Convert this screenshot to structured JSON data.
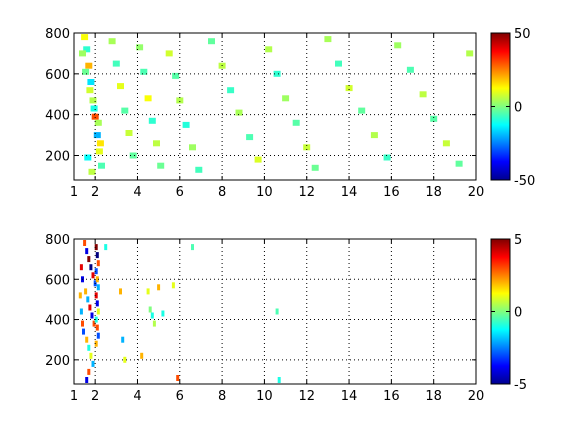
{
  "chart_data": [
    {
      "type": "heatmap",
      "title": "",
      "xlabel": "",
      "ylabel": "",
      "xlim": [
        1,
        20
      ],
      "ylim": [
        80,
        800
      ],
      "x_ticks": [
        "1",
        "2",
        "4",
        "6",
        "8",
        "10",
        "12",
        "14",
        "16",
        "18",
        "20"
      ],
      "y_ticks": [
        "200",
        "400",
        "600",
        "800"
      ],
      "grid": true,
      "colormap": "jet",
      "colorbar": {
        "range": [
          -50,
          50
        ],
        "ticks": [
          "50",
          "0",
          "-50"
        ]
      },
      "points": [
        [
          1.5,
          780,
          12
        ],
        [
          1.6,
          720,
          -8
        ],
        [
          1.7,
          640,
          20
        ],
        [
          1.8,
          560,
          -15
        ],
        [
          1.9,
          470,
          5
        ],
        [
          2.0,
          390,
          30
        ],
        [
          2.1,
          300,
          -20
        ],
        [
          2.2,
          220,
          10
        ],
        [
          2.3,
          150,
          -5
        ],
        [
          1.4,
          700,
          3
        ],
        [
          1.55,
          610,
          -2
        ],
        [
          1.75,
          520,
          8
        ],
        [
          1.95,
          430,
          -10
        ],
        [
          2.15,
          360,
          4
        ],
        [
          2.25,
          260,
          15
        ],
        [
          1.65,
          190,
          -12
        ],
        [
          1.85,
          120,
          6
        ],
        [
          2.8,
          760,
          4
        ],
        [
          3.0,
          650,
          -6
        ],
        [
          3.2,
          540,
          10
        ],
        [
          3.4,
          420,
          -4
        ],
        [
          3.6,
          310,
          7
        ],
        [
          3.8,
          200,
          -3
        ],
        [
          4.1,
          730,
          2
        ],
        [
          4.3,
          610,
          -5
        ],
        [
          4.5,
          480,
          12
        ],
        [
          4.7,
          370,
          -8
        ],
        [
          4.9,
          260,
          6
        ],
        [
          5.1,
          150,
          -2
        ],
        [
          5.5,
          700,
          8
        ],
        [
          5.8,
          590,
          -4
        ],
        [
          6.0,
          470,
          5
        ],
        [
          6.3,
          350,
          -9
        ],
        [
          6.6,
          240,
          3
        ],
        [
          6.9,
          130,
          -6
        ],
        [
          7.5,
          760,
          -3
        ],
        [
          8.0,
          640,
          6
        ],
        [
          8.4,
          520,
          -7
        ],
        [
          8.8,
          410,
          4
        ],
        [
          9.3,
          290,
          -5
        ],
        [
          9.7,
          180,
          9
        ],
        [
          10.2,
          720,
          5
        ],
        [
          10.6,
          600,
          -8
        ],
        [
          11.0,
          480,
          3
        ],
        [
          11.5,
          360,
          -4
        ],
        [
          12.0,
          240,
          7
        ],
        [
          12.4,
          140,
          -2
        ],
        [
          13.0,
          770,
          4
        ],
        [
          13.5,
          650,
          -6
        ],
        [
          14.0,
          530,
          8
        ],
        [
          14.6,
          420,
          -3
        ],
        [
          15.2,
          300,
          5
        ],
        [
          15.8,
          190,
          -7
        ],
        [
          16.3,
          740,
          3
        ],
        [
          16.9,
          620,
          -5
        ],
        [
          17.5,
          500,
          6
        ],
        [
          18.0,
          380,
          -4
        ],
        [
          18.6,
          260,
          7
        ],
        [
          19.2,
          160,
          -3
        ],
        [
          19.7,
          700,
          5
        ]
      ]
    },
    {
      "type": "heatmap",
      "title": "",
      "xlabel": "",
      "ylabel": "",
      "xlim": [
        1,
        20
      ],
      "ylim": [
        80,
        800
      ],
      "x_ticks": [
        "1",
        "2",
        "4",
        "6",
        "8",
        "10",
        "12",
        "14",
        "16",
        "18",
        "20"
      ],
      "y_ticks": [
        "200",
        "400",
        "600",
        "800"
      ],
      "grid": true,
      "colormap": "jet",
      "colorbar": {
        "range": [
          -5,
          5
        ],
        "ticks": [
          "5",
          "0",
          "-5"
        ]
      },
      "points": [
        [
          1.5,
          780,
          3
        ],
        [
          1.6,
          740,
          -4
        ],
        [
          1.7,
          700,
          5
        ],
        [
          1.8,
          660,
          -5
        ],
        [
          1.9,
          620,
          4
        ],
        [
          2.0,
          580,
          -3
        ],
        [
          1.55,
          540,
          2
        ],
        [
          1.65,
          500,
          -2
        ],
        [
          1.75,
          460,
          4
        ],
        [
          1.85,
          420,
          -4
        ],
        [
          1.95,
          380,
          3
        ],
        [
          1.45,
          340,
          -3
        ],
        [
          1.6,
          300,
          2
        ],
        [
          1.7,
          260,
          -1
        ],
        [
          1.8,
          220,
          1
        ],
        [
          1.9,
          180,
          -2
        ],
        [
          1.7,
          140,
          3
        ],
        [
          1.6,
          100,
          -4
        ],
        [
          2.05,
          760,
          5
        ],
        [
          2.1,
          720,
          -5
        ],
        [
          2.15,
          680,
          3
        ],
        [
          2.05,
          640,
          -3
        ],
        [
          2.1,
          600,
          2
        ],
        [
          2.15,
          560,
          -2
        ],
        [
          2.05,
          520,
          4
        ],
        [
          2.1,
          480,
          -4
        ],
        [
          2.15,
          440,
          1
        ],
        [
          2.05,
          400,
          -1
        ],
        [
          2.1,
          360,
          3
        ],
        [
          2.15,
          320,
          -3
        ],
        [
          2.05,
          280,
          2
        ],
        [
          1.35,
          660,
          4
        ],
        [
          1.4,
          600,
          -4
        ],
        [
          1.3,
          520,
          2
        ],
        [
          1.35,
          440,
          -2
        ],
        [
          1.4,
          380,
          3
        ],
        [
          2.5,
          760,
          -1
        ],
        [
          3.2,
          540,
          2
        ],
        [
          3.3,
          300,
          -2
        ],
        [
          3.4,
          200,
          1
        ],
        [
          4.2,
          220,
          2
        ],
        [
          4.5,
          540,
          1
        ],
        [
          4.6,
          450,
          0
        ],
        [
          4.7,
          420,
          -1
        ],
        [
          4.8,
          380,
          0.5
        ],
        [
          5.0,
          560,
          2
        ],
        [
          5.2,
          430,
          -1
        ],
        [
          5.7,
          570,
          1
        ],
        [
          5.9,
          110,
          3
        ],
        [
          6.6,
          760,
          -0.5
        ],
        [
          10.6,
          440,
          -0.5
        ],
        [
          10.7,
          100,
          -1
        ]
      ]
    }
  ]
}
